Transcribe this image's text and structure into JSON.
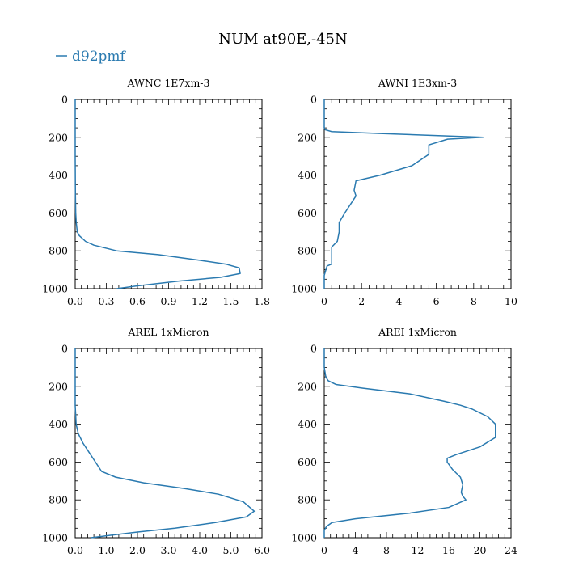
{
  "title": "NUM at90E,-45N",
  "legend": {
    "label": "d92pmf",
    "color": "#2a7ab0"
  },
  "line_color": "#2a7ab0",
  "chart_data": [
    {
      "type": "line",
      "title": "AWNC  1E7xm-3",
      "xlim": [
        0,
        1.8
      ],
      "ylim": [
        1000,
        0
      ],
      "xticks": [
        "0.0",
        "0.3",
        "0.6",
        "0.9",
        "1.2",
        "1.5",
        "1.8"
      ],
      "xtick_values": [
        0,
        0.3,
        0.6,
        0.9,
        1.2,
        1.5,
        1.8
      ],
      "yticks": [
        "0",
        "200",
        "400",
        "600",
        "800",
        "1000"
      ],
      "ytick_values": [
        0,
        200,
        400,
        600,
        800,
        1000
      ],
      "series": [
        {
          "name": "d92pmf",
          "x": [
            0,
            0,
            0,
            0.002,
            0.005,
            0.01,
            0.02,
            0.04,
            0.1,
            0.18,
            0.4,
            0.8,
            1.2,
            1.45,
            1.58,
            1.59,
            1.4,
            1.0,
            0.6,
            0.4
          ],
          "y": [
            0,
            100,
            300,
            500,
            600,
            650,
            700,
            720,
            750,
            770,
            800,
            820,
            850,
            870,
            890,
            920,
            940,
            960,
            985,
            1000
          ]
        }
      ]
    },
    {
      "type": "line",
      "title": "AWNI  1E3xm-3",
      "xlim": [
        0,
        10
      ],
      "ylim": [
        1000,
        0
      ],
      "xticks": [
        "0",
        "2",
        "4",
        "6",
        "8",
        "10"
      ],
      "xtick_values": [
        0,
        2,
        4,
        6,
        8,
        10
      ],
      "yticks": [
        "0",
        "200",
        "400",
        "600",
        "800",
        "1000"
      ],
      "ytick_values": [
        0,
        200,
        400,
        600,
        800,
        1000
      ],
      "series": [
        {
          "name": "d92pmf",
          "x": [
            0,
            0,
            0,
            0.05,
            0.4,
            3.0,
            8.5,
            6.6,
            5.6,
            5.6,
            4.7,
            3.0,
            1.7,
            1.6,
            1.7,
            1.3,
            1.1,
            0.8,
            0.8,
            0.7,
            0.4,
            0.4,
            0.4,
            0.15,
            0,
            0
          ],
          "y": [
            0,
            100,
            150,
            160,
            170,
            180,
            200,
            210,
            240,
            290,
            350,
            400,
            430,
            480,
            510,
            570,
            600,
            650,
            700,
            750,
            780,
            830,
            870,
            880,
            930,
            1000
          ]
        }
      ]
    },
    {
      "type": "line",
      "title": "AREL  1xMicron",
      "xlim": [
        0,
        6
      ],
      "ylim": [
        1000,
        0
      ],
      "xticks": [
        "0.0",
        "1.0",
        "2.0",
        "3.0",
        "4.0",
        "5.0",
        "6.0"
      ],
      "xtick_values": [
        0,
        1,
        2,
        3,
        4,
        5,
        6
      ],
      "yticks": [
        "0",
        "200",
        "400",
        "600",
        "800",
        "1000"
      ],
      "ytick_values": [
        0,
        200,
        400,
        600,
        800,
        1000
      ],
      "series": [
        {
          "name": "d92pmf",
          "x": [
            0,
            0,
            0.03,
            0.1,
            0.25,
            0.45,
            0.65,
            0.85,
            1.3,
            2.2,
            3.5,
            4.6,
            5.4,
            5.75,
            5.5,
            4.5,
            3.2,
            2.0,
            1.0,
            0.5
          ],
          "y": [
            0,
            300,
            400,
            450,
            500,
            550,
            600,
            650,
            680,
            710,
            740,
            770,
            810,
            860,
            890,
            920,
            950,
            970,
            990,
            1000
          ]
        }
      ]
    },
    {
      "type": "line",
      "title": "AREI  1xMicron",
      "xlim": [
        0,
        24
      ],
      "ylim": [
        1000,
        0
      ],
      "xticks": [
        "0",
        "4",
        "8",
        "12",
        "16",
        "20",
        "24"
      ],
      "xtick_values": [
        0,
        4,
        8,
        12,
        16,
        20,
        24
      ],
      "yticks": [
        "0",
        "200",
        "400",
        "600",
        "800",
        "1000"
      ],
      "ytick_values": [
        0,
        200,
        400,
        600,
        800,
        1000
      ],
      "series": [
        {
          "name": "d92pmf",
          "x": [
            0,
            0,
            0.2,
            0.5,
            1.5,
            5.0,
            11.0,
            15.5,
            17.5,
            19.0,
            21.0,
            22.0,
            22.0,
            20.0,
            17.0,
            15.8,
            15.8,
            16.5,
            17.5,
            17.8,
            17.6,
            17.8,
            18.2,
            16.0,
            11.0,
            4.0,
            1.0,
            0.3,
            0,
            0
          ],
          "y": [
            0,
            100,
            150,
            170,
            190,
            210,
            240,
            280,
            300,
            320,
            360,
            400,
            470,
            520,
            560,
            580,
            600,
            640,
            680,
            720,
            760,
            780,
            800,
            840,
            870,
            900,
            920,
            940,
            960,
            1000
          ]
        }
      ]
    }
  ]
}
